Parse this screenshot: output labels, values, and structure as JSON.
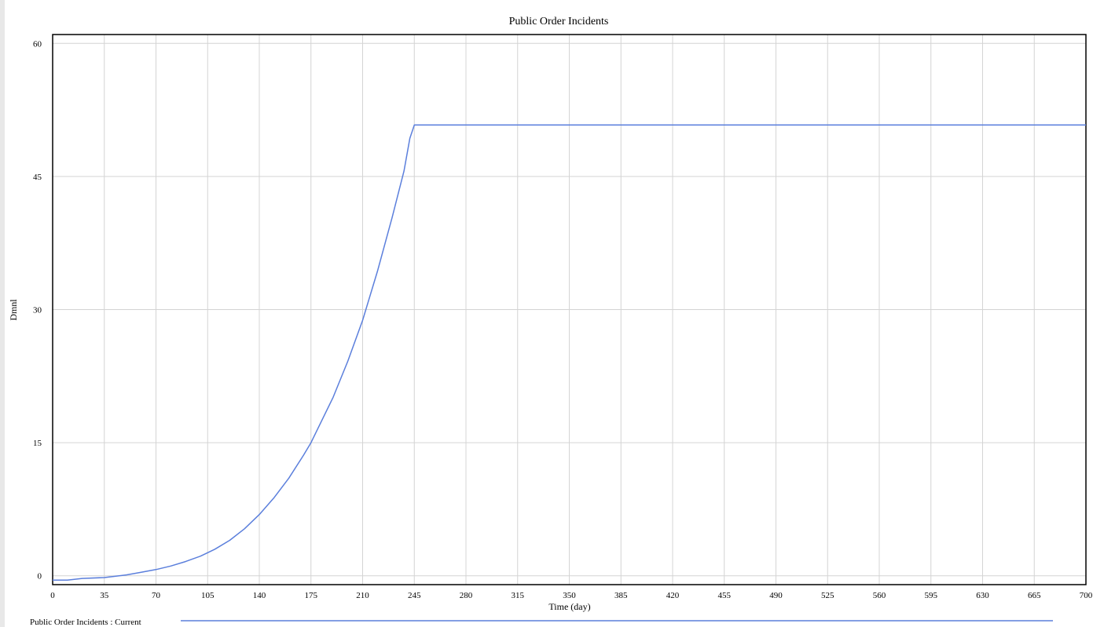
{
  "chart_data": {
    "type": "line",
    "title": "Public Order Incidents",
    "xlabel": "Time (day)",
    "ylabel": "Dmnl",
    "xlim": [
      0,
      700
    ],
    "ylim": [
      -1,
      61
    ],
    "x_ticks": [
      0,
      35,
      70,
      105,
      140,
      175,
      210,
      245,
      280,
      315,
      350,
      385,
      420,
      455,
      490,
      525,
      560,
      595,
      630,
      665,
      700
    ],
    "y_ticks": [
      0,
      15,
      30,
      45,
      60
    ],
    "grid": true,
    "legend_placement": "bottom-left",
    "series": [
      {
        "name": "Public Order Incidents : Current",
        "color": "#5b7fdc",
        "x": [
          0,
          10,
          20,
          35,
          50,
          60,
          70,
          80,
          90,
          100,
          105,
          110,
          120,
          130,
          140,
          150,
          160,
          170,
          175,
          180,
          190,
          200,
          210,
          220,
          230,
          238,
          242,
          245,
          280,
          315,
          350,
          385,
          420,
          455,
          490,
          525,
          560,
          595,
          630,
          665,
          700
        ],
        "y": [
          -0.5,
          -0.5,
          -0.3,
          -0.2,
          0.1,
          0.4,
          0.7,
          1.1,
          1.6,
          2.2,
          2.6,
          3.0,
          4.0,
          5.3,
          6.9,
          8.8,
          11.0,
          13.6,
          15.0,
          16.7,
          20.1,
          24.2,
          28.8,
          34.3,
          40.4,
          45.6,
          49.3,
          50.8,
          50.8,
          50.8,
          50.8,
          50.8,
          50.8,
          50.8,
          50.8,
          50.8,
          50.8,
          50.8,
          50.8,
          50.8,
          50.8
        ]
      }
    ]
  }
}
